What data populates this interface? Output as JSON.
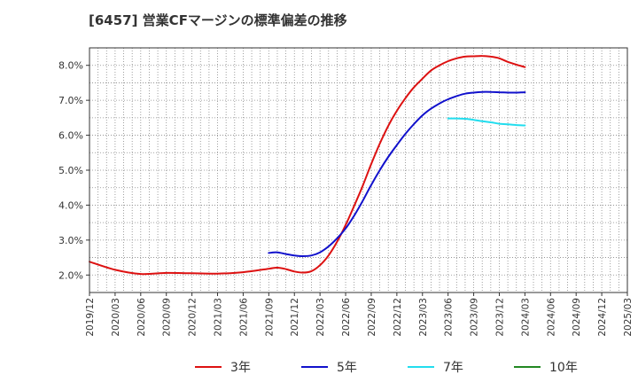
{
  "title": "[6457]  営業CFマージンの標準偏差の推移",
  "chart_data": {
    "type": "line",
    "title": "[6457]  営業CFマージンの標準偏差の推移",
    "xlabel": "",
    "ylabel": "",
    "x_ticks": [
      "2019/12",
      "2020/03",
      "2020/06",
      "2020/09",
      "2020/12",
      "2021/03",
      "2021/06",
      "2021/09",
      "2021/12",
      "2022/03",
      "2022/06",
      "2022/09",
      "2022/12",
      "2023/03",
      "2023/06",
      "2023/09",
      "2023/12",
      "2024/03",
      "2024/06",
      "2024/09",
      "2024/12",
      "2025/03"
    ],
    "y_ticks": [
      "2.0%",
      "3.0%",
      "4.0%",
      "5.0%",
      "6.0%",
      "7.0%",
      "8.0%"
    ],
    "ylim": [
      1.5,
      8.5
    ],
    "grid": true,
    "legend_position": "bottom",
    "series": [
      {
        "name": "3年",
        "color": "#dd1111",
        "x": [
          "2019/12",
          "2020/03",
          "2020/06",
          "2020/09",
          "2020/12",
          "2021/03",
          "2021/06",
          "2021/09",
          "2021/10",
          "2021/11",
          "2021/12",
          "2022/01",
          "2022/02",
          "2022/03",
          "2022/04",
          "2022/05",
          "2022/06",
          "2022/07",
          "2022/08",
          "2022/09",
          "2022/10",
          "2022/11",
          "2022/12",
          "2023/01",
          "2023/02",
          "2023/03",
          "2023/04",
          "2023/05",
          "2023/06",
          "2023/07",
          "2023/08",
          "2023/09",
          "2023/10",
          "2023/11",
          "2023/12",
          "2024/01",
          "2024/02",
          "2024/03"
        ],
        "values": [
          2.38,
          2.15,
          2.03,
          2.06,
          2.05,
          2.04,
          2.08,
          2.18,
          2.21,
          2.17,
          2.1,
          2.07,
          2.11,
          2.28,
          2.56,
          2.95,
          3.43,
          3.98,
          4.55,
          5.18,
          5.76,
          6.27,
          6.7,
          7.06,
          7.37,
          7.62,
          7.85,
          8.0,
          8.12,
          8.2,
          8.25,
          8.26,
          8.27,
          8.25,
          8.2,
          8.1,
          8.02,
          7.95
        ]
      },
      {
        "name": "5年",
        "color": "#1111cc",
        "x": [
          "2021/09",
          "2021/10",
          "2021/11",
          "2021/12",
          "2022/01",
          "2022/02",
          "2022/03",
          "2022/04",
          "2022/05",
          "2022/06",
          "2022/07",
          "2022/08",
          "2022/09",
          "2022/10",
          "2022/11",
          "2022/12",
          "2023/01",
          "2023/02",
          "2023/03",
          "2023/04",
          "2023/05",
          "2023/06",
          "2023/07",
          "2023/08",
          "2023/09",
          "2023/10",
          "2023/11",
          "2023/12",
          "2024/01",
          "2024/02",
          "2024/03"
        ],
        "values": [
          2.63,
          2.65,
          2.6,
          2.56,
          2.54,
          2.56,
          2.65,
          2.82,
          3.05,
          3.33,
          3.7,
          4.12,
          4.58,
          5.0,
          5.38,
          5.72,
          6.04,
          6.32,
          6.57,
          6.76,
          6.91,
          7.03,
          7.12,
          7.19,
          7.22,
          7.24,
          7.24,
          7.23,
          7.22,
          7.22,
          7.23
        ]
      },
      {
        "name": "7年",
        "color": "#22ddee",
        "x": [
          "2023/06",
          "2023/07",
          "2023/08",
          "2023/09",
          "2023/10",
          "2023/11",
          "2023/12",
          "2024/01",
          "2024/02",
          "2024/03"
        ],
        "values": [
          6.48,
          6.48,
          6.47,
          6.44,
          6.4,
          6.37,
          6.33,
          6.31,
          6.29,
          6.28
        ]
      },
      {
        "name": "10年",
        "color": "#228822",
        "x": [],
        "values": []
      }
    ]
  }
}
